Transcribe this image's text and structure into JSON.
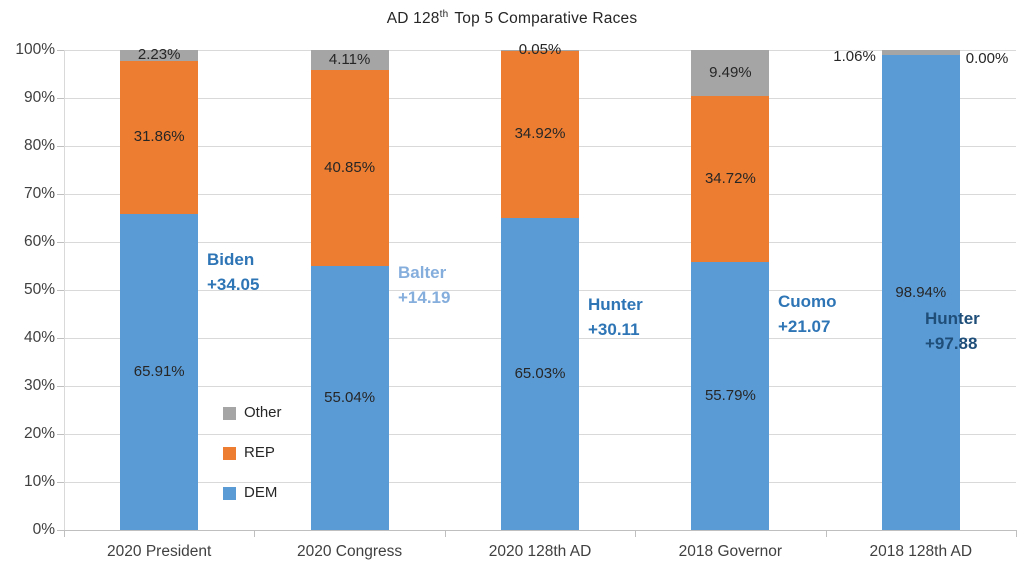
{
  "title": {
    "prefix": "AD 128",
    "superscript": "th",
    "rest": "Top 5 Comparative Races"
  },
  "colors": {
    "background": "#FFFFFF",
    "gridline": "#D9D9D9",
    "axis_line": "#BFBFBF",
    "axis_text": "#404040",
    "title_text": "#262626",
    "data_label_text": "#262626",
    "dem_blue": "#5B9BD5",
    "rep_orange": "#ED7D31",
    "other_gray": "#A5A5A5",
    "annotation_strong_blue": "#2E75B6",
    "annotation_light_blue": "#85AEDD",
    "annotation_dark_navy": "#1F4E79"
  },
  "chart_data": {
    "type": "bar",
    "variant": "stacked-100-percent",
    "title": "AD 128th Top 5 Comparative Races",
    "grid": true,
    "categories": [
      "2020 President",
      "2020 Congress",
      "2020 128th AD",
      "2018 Governor",
      "2018 128th AD"
    ],
    "series": [
      {
        "name": "DEM",
        "color": "#5B9BD5",
        "values": [
          65.91,
          55.04,
          65.03,
          55.79,
          98.94
        ]
      },
      {
        "name": "REP",
        "color": "#ED7D31",
        "values": [
          31.86,
          40.85,
          34.92,
          34.72,
          0.0
        ]
      },
      {
        "name": "Other",
        "color": "#A5A5A5",
        "values": [
          2.23,
          4.11,
          0.05,
          9.49,
          1.06
        ]
      }
    ],
    "data_label_format": "0.00%",
    "y_axis": {
      "min": 0,
      "max": 100,
      "tick_step": 10,
      "tick_labels": [
        "0%",
        "10%",
        "20%",
        "30%",
        "40%",
        "50%",
        "60%",
        "70%",
        "80%",
        "90%",
        "100%"
      ]
    },
    "legend": {
      "position": "inside-lower-left",
      "items": [
        "Other",
        "REP",
        "DEM"
      ]
    },
    "annotations": [
      {
        "name": "Biden",
        "margin": "+34.05",
        "category": "2020 President",
        "color_key": "annotation_strong_blue"
      },
      {
        "name": "Balter",
        "margin": "+14.19",
        "category": "2020 Congress",
        "color_key": "annotation_light_blue"
      },
      {
        "name": "Hunter",
        "margin": "+30.11",
        "category": "2020 128th AD",
        "color_key": "annotation_strong_blue"
      },
      {
        "name": "Cuomo",
        "margin": "+21.07",
        "category": "2018 Governor",
        "color_key": "annotation_strong_blue"
      },
      {
        "name": "Hunter",
        "margin": "+97.88",
        "category": "2018 128th AD",
        "color_key": "annotation_dark_navy"
      }
    ]
  }
}
